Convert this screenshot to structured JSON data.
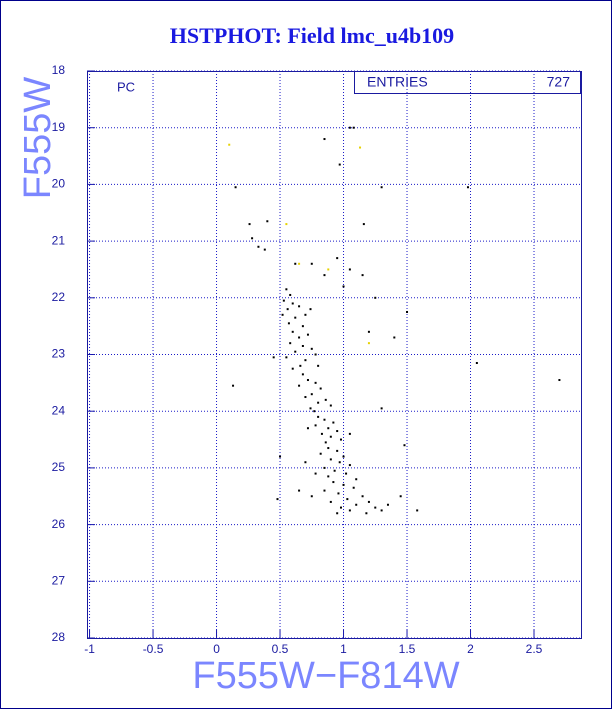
{
  "chart_data": {
    "type": "scatter",
    "title": "HSTPHOT: Field lmc_u4b109",
    "x_label": "F555W−F814W",
    "y_label": "F555W",
    "annotation": "PC",
    "stats": {
      "label": "ENTRIES",
      "value": 727
    },
    "xlim": [
      -1.02,
      2.87
    ],
    "ylim": [
      18,
      28
    ],
    "y_inverted": true,
    "xticks": [
      -1,
      -0.5,
      0,
      0.5,
      1,
      1.5,
      2,
      2.5
    ],
    "yticks": [
      18,
      19,
      20,
      21,
      22,
      23,
      24,
      25,
      26,
      27,
      28
    ],
    "grid": true,
    "series": [
      {
        "color": "#000000",
        "x": [
          0.15,
          0.13,
          0.26,
          0.33,
          0.4,
          0.85,
          0.97,
          1.05,
          1.08,
          1.3,
          1.98,
          1.16,
          2.7,
          2.05,
          1.5,
          1.4,
          1.3,
          1.48,
          0.45,
          0.5,
          0.48,
          1.58,
          1.45,
          0.28,
          0.38,
          1.05,
          1.15,
          1.0,
          0.95,
          0.62,
          0.75,
          0.85,
          1.25,
          1.2,
          0.55,
          0.58,
          0.53,
          0.6,
          0.56,
          0.65,
          0.7,
          0.62,
          0.57,
          0.68,
          0.74,
          0.52,
          0.6,
          0.65,
          0.72,
          0.58,
          0.68,
          0.75,
          0.62,
          0.55,
          0.7,
          0.78,
          0.66,
          0.6,
          0.8,
          0.68,
          0.72,
          0.78,
          0.65,
          0.82,
          0.75,
          0.7,
          0.86,
          0.8,
          0.74,
          0.9,
          0.77,
          0.8,
          0.85,
          0.92,
          0.78,
          0.88,
          0.95,
          0.83,
          0.9,
          0.98,
          0.86,
          0.72,
          1.05,
          0.88,
          0.95,
          0.82,
          1.0,
          0.9,
          0.97,
          1.05,
          0.85,
          0.93,
          1.02,
          0.88,
          1.1,
          0.78,
          0.7,
          0.92,
          1.0,
          1.08,
          0.85,
          0.96,
          1.15,
          1.03,
          0.9,
          1.2,
          1.1,
          0.98,
          1.25,
          1.05,
          0.95,
          1.3,
          1.35,
          1.18,
          0.75,
          0.65
        ],
        "values": [
          20.05,
          23.55,
          20.7,
          21.1,
          20.65,
          19.2,
          19.65,
          19.0,
          19.0,
          20.05,
          20.05,
          20.7,
          23.45,
          23.15,
          22.25,
          22.7,
          23.95,
          24.6,
          23.05,
          24.8,
          25.55,
          25.75,
          25.5,
          20.95,
          21.15,
          21.5,
          21.6,
          21.8,
          21.3,
          21.4,
          21.4,
          21.6,
          22.0,
          22.6,
          21.85,
          21.95,
          22.05,
          22.1,
          22.2,
          22.15,
          22.3,
          22.35,
          22.45,
          22.5,
          22.2,
          22.3,
          22.6,
          22.7,
          22.65,
          22.8,
          22.85,
          22.9,
          22.95,
          23.05,
          23.1,
          23.0,
          23.2,
          23.25,
          23.2,
          23.35,
          23.45,
          23.5,
          23.55,
          23.6,
          23.7,
          23.75,
          23.8,
          23.85,
          23.95,
          23.9,
          24.0,
          24.1,
          24.15,
          24.2,
          24.25,
          24.3,
          24.35,
          24.4,
          24.45,
          24.5,
          24.55,
          24.3,
          24.4,
          24.65,
          24.7,
          24.75,
          24.8,
          24.85,
          24.9,
          24.95,
          25.0,
          25.05,
          25.1,
          25.15,
          25.2,
          25.1,
          24.9,
          25.25,
          25.3,
          25.35,
          25.4,
          25.45,
          25.5,
          25.55,
          25.6,
          25.6,
          25.65,
          25.7,
          25.7,
          25.75,
          25.8,
          25.75,
          25.65,
          25.8,
          25.5,
          25.4
        ]
      },
      {
        "color": "#e6d200",
        "x": [
          1.13,
          0.55,
          0.88,
          0.65,
          1.2,
          0.1
        ],
        "values": [
          19.35,
          20.7,
          21.5,
          21.4,
          22.8,
          19.3
        ]
      }
    ]
  }
}
